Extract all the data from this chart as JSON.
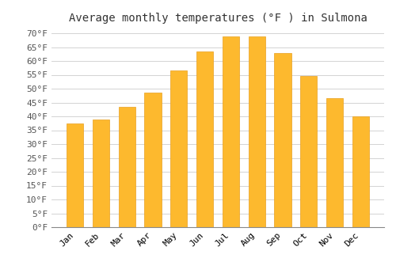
{
  "title": "Average monthly temperatures (°F ) in Sulmona",
  "months": [
    "Jan",
    "Feb",
    "Mar",
    "Apr",
    "May",
    "Jun",
    "Jul",
    "Aug",
    "Sep",
    "Oct",
    "Nov",
    "Dec"
  ],
  "values": [
    37.5,
    39.0,
    43.5,
    48.5,
    56.5,
    63.5,
    69.0,
    69.0,
    63.0,
    54.5,
    46.5,
    40.0
  ],
  "bar_color_top": "#FDB92E",
  "bar_color_bottom": "#F5A800",
  "bar_edge_color": "#E8A020",
  "ylim": [
    0,
    72
  ],
  "yticks": [
    0,
    5,
    10,
    15,
    20,
    25,
    30,
    35,
    40,
    45,
    50,
    55,
    60,
    65,
    70
  ],
  "background_color": "#FFFFFF",
  "grid_color": "#CCCCCC",
  "title_fontsize": 10,
  "tick_fontsize": 8,
  "font_family": "monospace"
}
